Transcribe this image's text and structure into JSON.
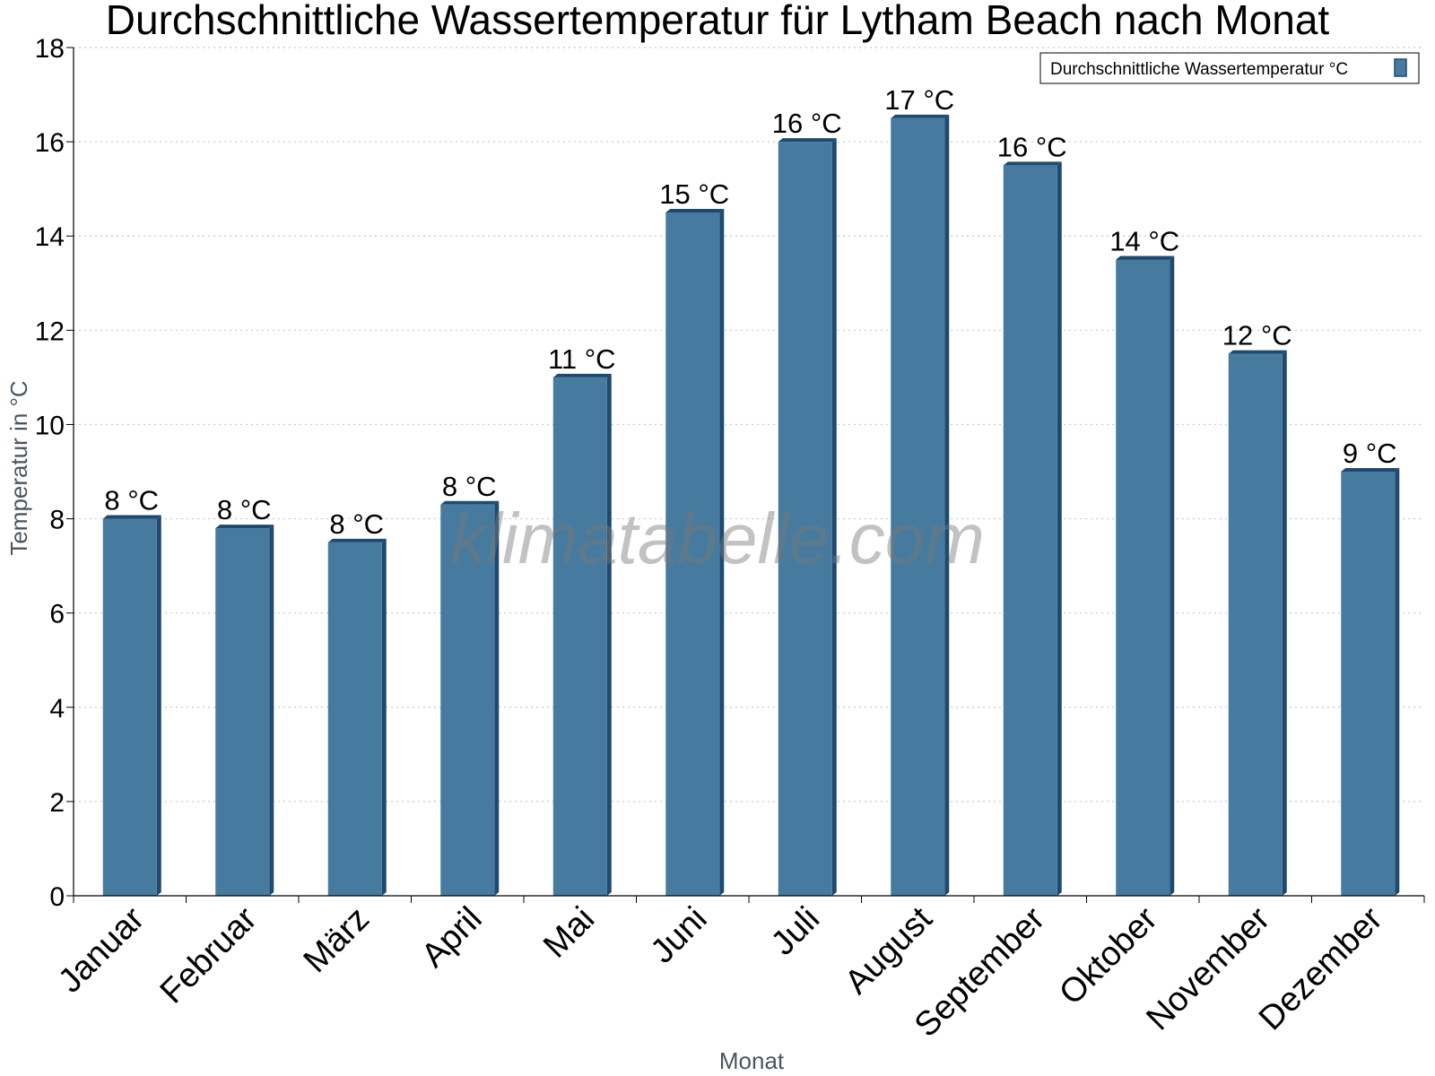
{
  "chart_data": {
    "type": "bar",
    "title": "Durchschnittliche Wassertemperatur für Lytham Beach nach Monat",
    "xlabel": "Monat",
    "ylabel": "Temperatur in °C",
    "categories": [
      "Januar",
      "Februar",
      "März",
      "April",
      "Mai",
      "Juni",
      "Juli",
      "August",
      "September",
      "Oktober",
      "November",
      "Dezember"
    ],
    "series": [
      {
        "name": "Durchschnittliche Wassertemperatur °C",
        "values": [
          8.0,
          7.8,
          7.5,
          8.3,
          11.0,
          14.5,
          16.0,
          16.5,
          15.5,
          13.5,
          11.5,
          9.0
        ],
        "labels": [
          "8 °C",
          "8 °C",
          "8 °C",
          "8 °C",
          "11 °C",
          "15 °C",
          "16 °C",
          "17 °C",
          "16 °C",
          "14 °C",
          "12 °C",
          "9 °C"
        ]
      }
    ],
    "ylim": [
      0,
      18
    ],
    "yticks": [
      0,
      2,
      4,
      6,
      8,
      10,
      12,
      14,
      16,
      18
    ],
    "grid": true,
    "legend_position": "top-right",
    "bar_color": "#467a9e",
    "bar_shade_color": "#1d4a6e"
  },
  "watermark": "klimatabelle.com"
}
